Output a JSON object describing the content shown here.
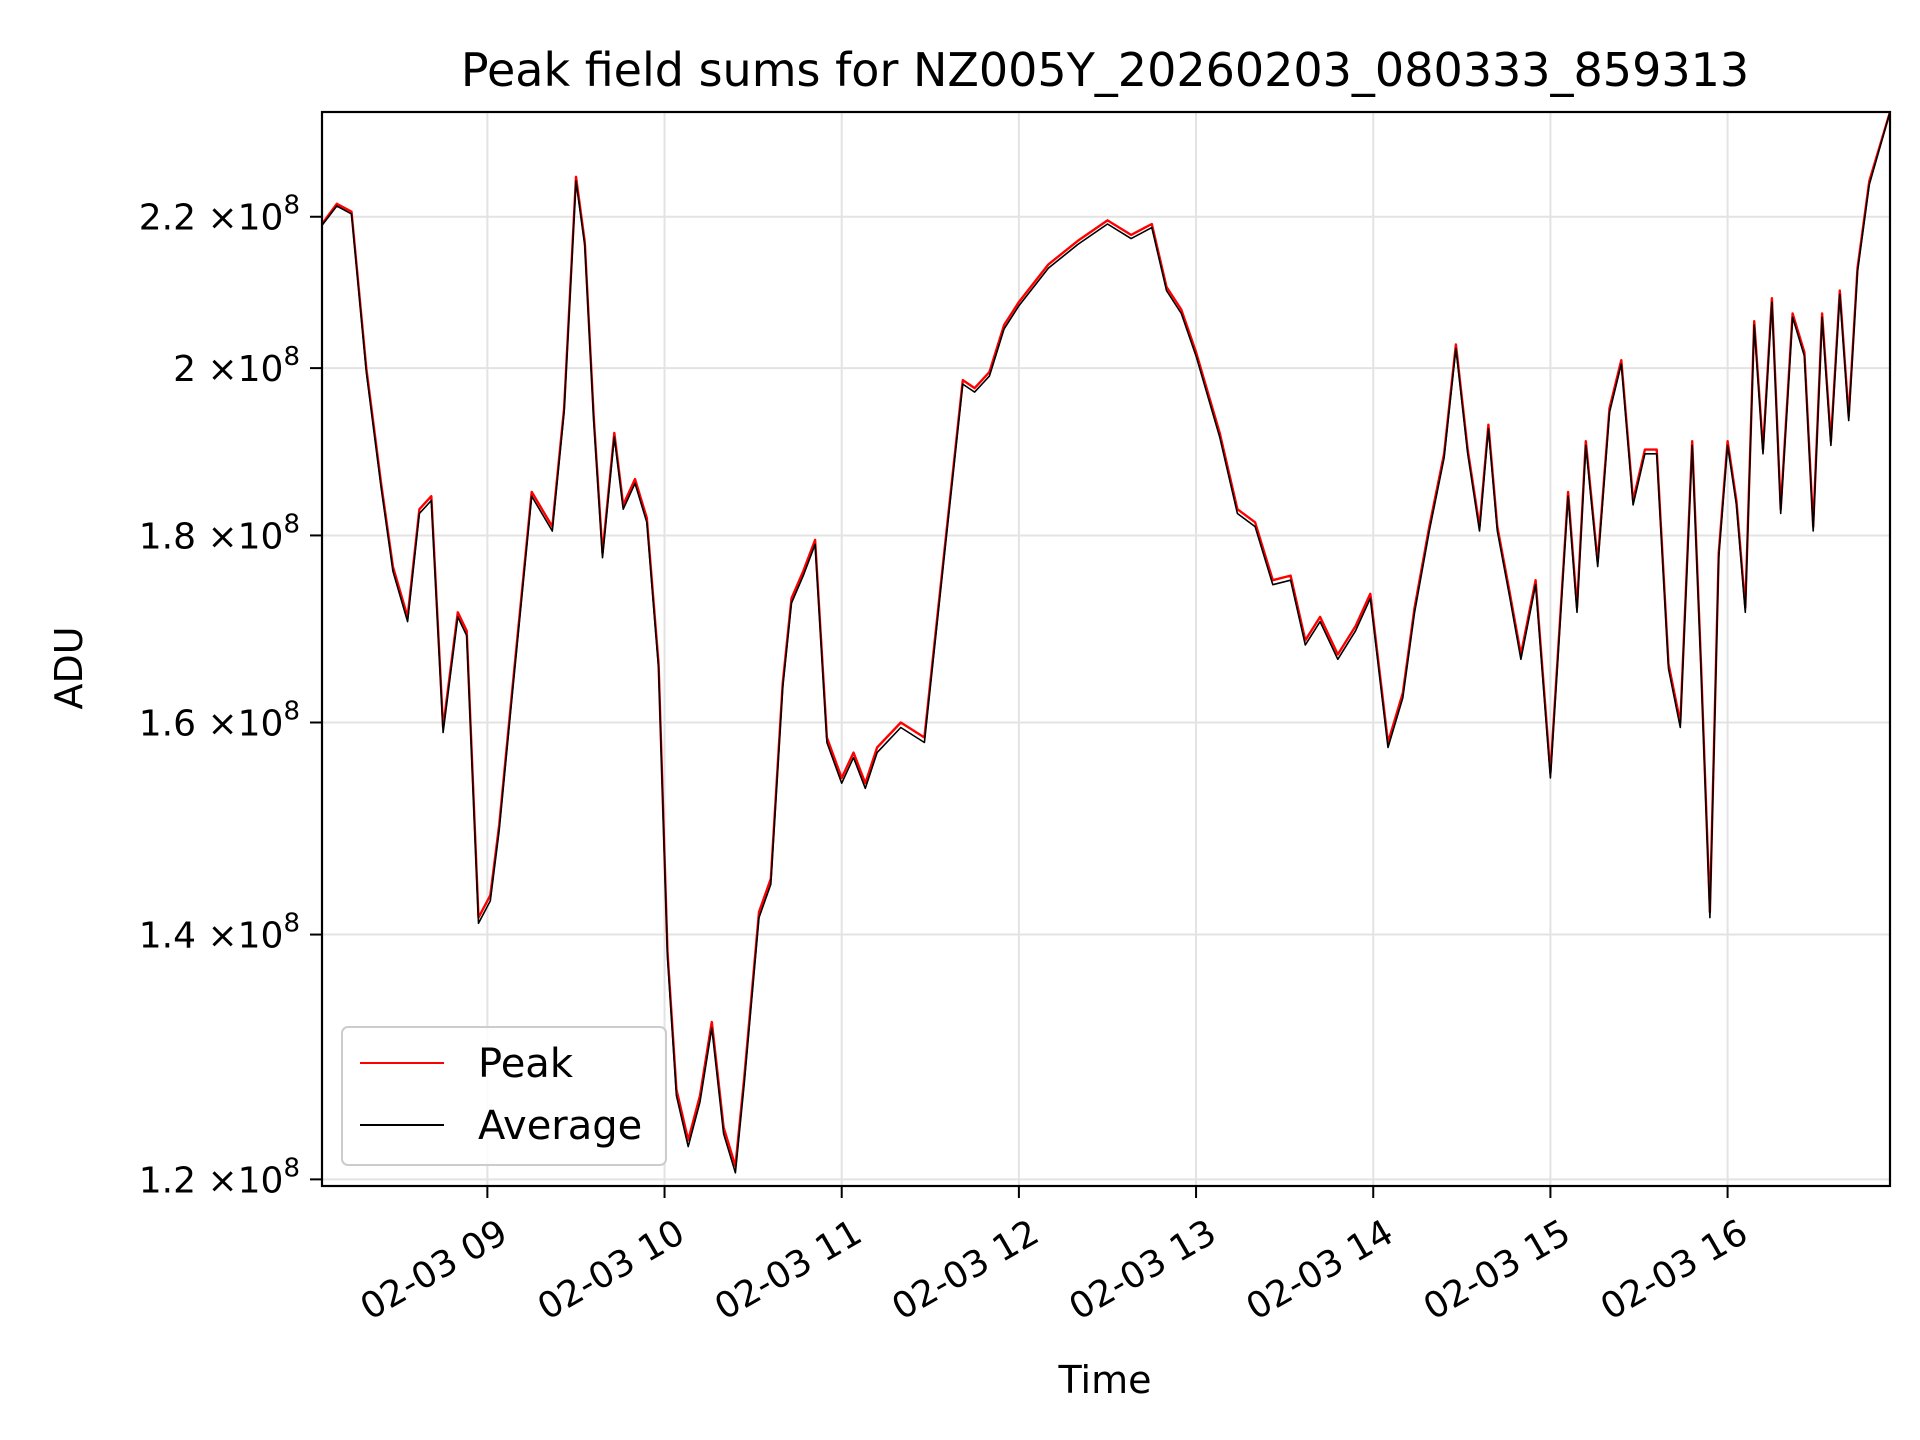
{
  "chart_data": {
    "type": "line",
    "title": "Peak field sums for NZ005Y_20260203_080333_859313",
    "xlabel": "Time",
    "ylabel": "ADU",
    "y_scale": "log",
    "xlim": [
      "02-03 08:04",
      "02-03 16:55"
    ],
    "ylim": [
      119500000,
      235000000
    ],
    "grid": true,
    "legend_position": "lower-left",
    "x_ticks": [
      {
        "value": "02-03 09:00",
        "label": "02-03 09"
      },
      {
        "value": "02-03 10:00",
        "label": "02-03 10"
      },
      {
        "value": "02-03 11:00",
        "label": "02-03 11"
      },
      {
        "value": "02-03 12:00",
        "label": "02-03 12"
      },
      {
        "value": "02-03 13:00",
        "label": "02-03 13"
      },
      {
        "value": "02-03 14:00",
        "label": "02-03 14"
      },
      {
        "value": "02-03 15:00",
        "label": "02-03 15"
      },
      {
        "value": "02-03 16:00",
        "label": "02-03 16"
      }
    ],
    "y_ticks": [
      {
        "value": 120000000,
        "mantissa": "1.2",
        "exponent": "8"
      },
      {
        "value": 140000000,
        "mantissa": "1.4",
        "exponent": "8"
      },
      {
        "value": 160000000,
        "mantissa": "1.6",
        "exponent": "8"
      },
      {
        "value": 180000000,
        "mantissa": "1.8",
        "exponent": "8"
      },
      {
        "value": 200000000,
        "mantissa": "2",
        "exponent": "8"
      },
      {
        "value": 220000000,
        "mantissa": "2.2",
        "exponent": "8"
      }
    ],
    "tick_multiplier": "×10",
    "x": [
      "02-03 08:04",
      "02-03 08:09",
      "02-03 08:14",
      "02-03 08:19",
      "02-03 08:24",
      "02-03 08:28",
      "02-03 08:33",
      "02-03 08:37",
      "02-03 08:41",
      "02-03 08:45",
      "02-03 08:50",
      "02-03 08:53",
      "02-03 08:57",
      "02-03 09:01",
      "02-03 09:04",
      "02-03 09:08",
      "02-03 09:15",
      "02-03 09:22",
      "02-03 09:26",
      "02-03 09:30",
      "02-03 09:33",
      "02-03 09:36",
      "02-03 09:39",
      "02-03 09:43",
      "02-03 09:46",
      "02-03 09:50",
      "02-03 09:54",
      "02-03 09:58",
      "02-03 10:01",
      "02-03 10:04",
      "02-03 10:08",
      "02-03 10:12",
      "02-03 10:16",
      "02-03 10:20",
      "02-03 10:24",
      "02-03 10:27",
      "02-03 10:32",
      "02-03 10:36",
      "02-03 10:40",
      "02-03 10:43",
      "02-03 10:47",
      "02-03 10:51",
      "02-03 10:55",
      "02-03 11:00",
      "02-03 11:04",
      "02-03 11:08",
      "02-03 11:12",
      "02-03 11:20",
      "02-03 11:28",
      "02-03 11:35",
      "02-03 11:41",
      "02-03 11:45",
      "02-03 11:50",
      "02-03 11:55",
      "02-03 12:00",
      "02-03 12:10",
      "02-03 12:20",
      "02-03 12:30",
      "02-03 12:38",
      "02-03 12:45",
      "02-03 12:50",
      "02-03 12:55",
      "02-03 13:00",
      "02-03 13:08",
      "02-03 13:14",
      "02-03 13:20",
      "02-03 13:26",
      "02-03 13:32",
      "02-03 13:37",
      "02-03 13:42",
      "02-03 13:48",
      "02-03 13:54",
      "02-03 13:59",
      "02-03 14:05",
      "02-03 14:10",
      "02-03 14:14",
      "02-03 14:19",
      "02-03 14:24",
      "02-03 14:28",
      "02-03 14:32",
      "02-03 14:36",
      "02-03 14:39",
      "02-03 14:42",
      "02-03 14:46",
      "02-03 14:50",
      "02-03 14:55",
      "02-03 15:00",
      "02-03 15:06",
      "02-03 15:09",
      "02-03 15:12",
      "02-03 15:16",
      "02-03 15:20",
      "02-03 15:24",
      "02-03 15:28",
      "02-03 15:32",
      "02-03 15:36",
      "02-03 15:40",
      "02-03 15:44",
      "02-03 15:48",
      "02-03 15:51",
      "02-03 15:54",
      "02-03 15:57",
      "02-03 16:00",
      "02-03 16:03",
      "02-03 16:06",
      "02-03 16:09",
      "02-03 16:12",
      "02-03 16:15",
      "02-03 16:18",
      "02-03 16:22",
      "02-03 16:26",
      "02-03 16:29",
      "02-03 16:32",
      "02-03 16:35",
      "02-03 16:38",
      "02-03 16:41",
      "02-03 16:44",
      "02-03 16:48",
      "02-03 16:55"
    ],
    "series": [
      {
        "name": "Peak",
        "color": "#ff0000",
        "values": [
          219000000,
          221800000,
          220700000,
          200000000,
          186000000,
          176500000,
          171000000,
          183000000,
          184500000,
          159500000,
          171500000,
          169500000,
          141500000,
          143500000,
          150000000,
          162000000,
          185000000,
          181000000,
          195000000,
          225600000,
          216500000,
          194000000,
          178000000,
          192000000,
          183500000,
          186500000,
          182000000,
          166000000,
          138500000,
          127000000,
          123000000,
          126500000,
          132500000,
          124000000,
          121000000,
          128000000,
          142000000,
          145000000,
          164000000,
          173000000,
          176000000,
          179500000,
          158500000,
          154500000,
          157000000,
          154000000,
          157500000,
          160000000,
          158500000,
          179000000,
          198500000,
          197500000,
          199500000,
          205500000,
          208500000,
          213500000,
          216700000,
          219500000,
          217500000,
          219000000,
          210500000,
          207500000,
          202000000,
          192000000,
          183000000,
          181500000,
          175000000,
          175500000,
          168500000,
          171000000,
          167000000,
          170000000,
          173500000,
          158000000,
          163000000,
          172000000,
          181000000,
          189500000,
          203000000,
          190000000,
          181000000,
          193000000,
          181000000,
          174000000,
          167000000,
          175000000,
          155000000,
          185000000,
          172000000,
          191000000,
          177000000,
          195000000,
          201000000,
          184000000,
          190000000,
          190000000,
          166000000,
          160000000,
          191000000,
          166000000,
          142000000,
          178000000,
          191000000,
          184000000,
          172000000,
          206000000,
          190000000,
          209000000,
          183000000,
          207000000,
          202000000,
          181000000,
          207000000,
          191000000,
          210000000,
          194000000,
          213000000,
          225000000,
          235000000
        ]
      },
      {
        "name": "Average",
        "color": "#000000",
        "values": [
          218800000,
          221500000,
          220400000,
          199500000,
          185500000,
          176000000,
          170500000,
          182500000,
          184000000,
          159000000,
          171000000,
          169000000,
          141000000,
          143000000,
          149500000,
          161500000,
          184500000,
          180500000,
          194500000,
          225000000,
          216000000,
          193500000,
          177500000,
          191500000,
          183000000,
          186000000,
          181500000,
          165500000,
          138000000,
          126500000,
          122500000,
          126000000,
          132000000,
          123500000,
          120500000,
          127500000,
          141500000,
          144500000,
          163500000,
          172500000,
          175500000,
          179000000,
          158000000,
          154000000,
          156500000,
          153500000,
          157000000,
          159500000,
          158000000,
          178500000,
          198000000,
          197000000,
          199000000,
          205000000,
          208000000,
          213000000,
          216200000,
          219000000,
          217000000,
          218500000,
          210000000,
          207000000,
          201500000,
          191500000,
          182500000,
          181000000,
          174500000,
          175000000,
          168000000,
          170500000,
          166500000,
          169500000,
          173000000,
          157500000,
          162500000,
          171500000,
          180500000,
          189000000,
          202500000,
          189500000,
          180500000,
          192500000,
          180500000,
          173500000,
          166500000,
          174500000,
          154500000,
          184500000,
          171500000,
          190500000,
          176500000,
          194500000,
          200500000,
          183500000,
          189500000,
          189500000,
          165500000,
          159500000,
          190500000,
          165500000,
          141500000,
          177500000,
          190500000,
          183500000,
          171500000,
          205500000,
          189500000,
          208500000,
          182500000,
          206500000,
          201500000,
          180500000,
          206500000,
          190500000,
          209500000,
          193500000,
          212500000,
          224500000,
          235000000
        ]
      }
    ]
  }
}
